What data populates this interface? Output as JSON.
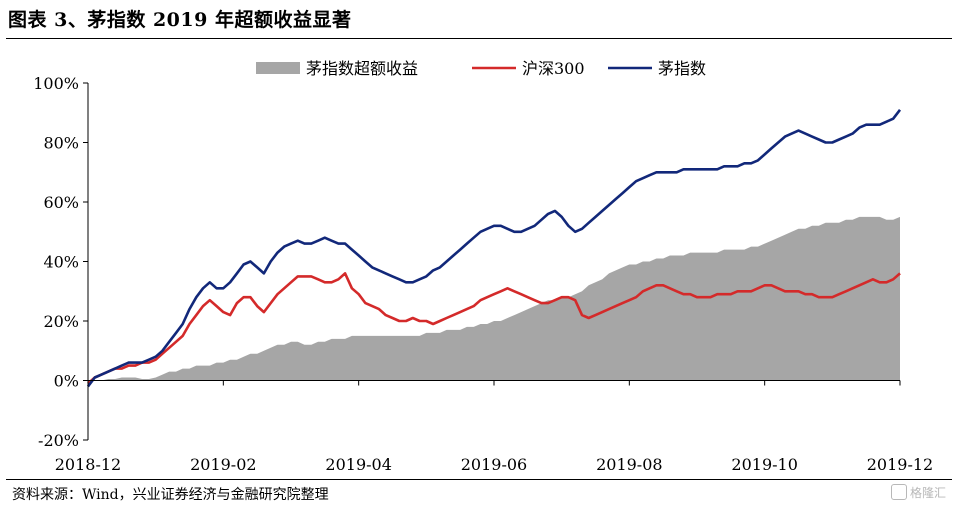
{
  "figure_title": "图表 3、茅指数 2019 年超额收益显著",
  "source": "资料来源：Wind，兴业证券经济与金融研究院整理",
  "watermark": "格隆汇",
  "colors": {
    "excess": "#a6a6a6",
    "hs300": "#d42a2a",
    "mao": "#12287a"
  },
  "chart_data": {
    "type": "line",
    "x_ticks": [
      "2018-12",
      "2019-02",
      "2019-04",
      "2019-06",
      "2019-08",
      "2019-10",
      "2019-12"
    ],
    "y_ticks": [
      "-20%",
      "0%",
      "20%",
      "40%",
      "60%",
      "80%",
      "100%"
    ],
    "ylim": [
      -20,
      100
    ],
    "legend_position": "top-center",
    "grid": false,
    "x": [
      0,
      1,
      2,
      3,
      4,
      5,
      6,
      7,
      8,
      9,
      10,
      11,
      12,
      13,
      14,
      15,
      16,
      17,
      18,
      19,
      20,
      21,
      22,
      23,
      24,
      25,
      26,
      27,
      28,
      29,
      30,
      31,
      32,
      33,
      34,
      35,
      36,
      37,
      38,
      39,
      40,
      41,
      42,
      43,
      44,
      45,
      46,
      47,
      48,
      49,
      50,
      51,
      52,
      53,
      54,
      55,
      56,
      57,
      58,
      59,
      60,
      61,
      62,
      63,
      64,
      65,
      66,
      67,
      68,
      69,
      70,
      71,
      72,
      73,
      74,
      75,
      76,
      77,
      78,
      79,
      80,
      81,
      82,
      83,
      84,
      85,
      86,
      87,
      88,
      89,
      90,
      91,
      92,
      93,
      94,
      95,
      96,
      97,
      98,
      99,
      100,
      101,
      102,
      103,
      104,
      105,
      106,
      107,
      108,
      109,
      110,
      111,
      112,
      113,
      114,
      115,
      116,
      117,
      118,
      119,
      120
    ],
    "series": [
      {
        "name": "茅指数超额收益",
        "kind": "area",
        "values": [
          -1,
          0,
          0,
          0.5,
          0.5,
          1,
          1,
          1,
          0.5,
          0.5,
          1,
          2,
          3,
          3,
          4,
          4,
          5,
          5,
          5,
          6,
          6,
          7,
          7,
          8,
          9,
          9,
          10,
          11,
          12,
          12,
          13,
          13,
          12,
          12,
          13,
          13,
          14,
          14,
          14,
          15,
          15,
          15,
          15,
          15,
          15,
          15,
          15,
          15,
          15,
          15,
          16,
          16,
          16,
          17,
          17,
          17,
          18,
          18,
          19,
          19,
          20,
          20,
          21,
          22,
          23,
          24,
          25,
          26,
          27,
          27,
          28,
          28,
          29,
          30,
          32,
          33,
          34,
          36,
          37,
          38,
          39,
          39,
          40,
          40,
          41,
          41,
          42,
          42,
          42,
          43,
          43,
          43,
          43,
          43,
          44,
          44,
          44,
          44,
          45,
          45,
          46,
          47,
          48,
          49,
          50,
          51,
          51,
          52,
          52,
          53,
          53,
          53,
          54,
          54,
          55,
          55,
          55,
          55,
          54,
          54,
          55
        ]
      },
      {
        "name": "沪深300",
        "kind": "line",
        "values": [
          -1,
          1,
          2,
          3,
          4,
          4,
          5,
          5,
          6,
          6,
          7,
          9,
          11,
          13,
          15,
          19,
          22,
          25,
          27,
          25,
          23,
          22,
          26,
          28,
          28,
          25,
          23,
          26,
          29,
          31,
          33,
          35,
          35,
          35,
          34,
          33,
          33,
          34,
          36,
          31,
          29,
          26,
          25,
          24,
          22,
          21,
          20,
          20,
          21,
          20,
          20,
          19,
          20,
          21,
          22,
          23,
          24,
          25,
          27,
          28,
          29,
          30,
          31,
          30,
          29,
          28,
          27,
          26,
          26,
          27,
          28,
          28,
          27,
          22,
          21,
          22,
          23,
          24,
          25,
          26,
          27,
          28,
          30,
          31,
          32,
          32,
          31,
          30,
          29,
          29,
          28,
          28,
          28,
          29,
          29,
          29,
          30,
          30,
          30,
          31,
          32,
          32,
          31,
          30,
          30,
          30,
          29,
          29,
          28,
          28,
          28,
          29,
          30,
          31,
          32,
          33,
          34,
          33,
          33,
          34,
          36
        ]
      },
      {
        "name": "茅指数",
        "kind": "line",
        "values": [
          -2,
          1,
          2,
          3,
          4,
          5,
          6,
          6,
          6,
          7,
          8,
          10,
          13,
          16,
          19,
          24,
          28,
          31,
          33,
          31,
          31,
          33,
          36,
          39,
          40,
          38,
          36,
          40,
          43,
          45,
          46,
          47,
          46,
          46,
          47,
          48,
          47,
          46,
          46,
          44,
          42,
          40,
          38,
          37,
          36,
          35,
          34,
          33,
          33,
          34,
          35,
          37,
          38,
          40,
          42,
          44,
          46,
          48,
          50,
          51,
          52,
          52,
          51,
          50,
          50,
          51,
          52,
          54,
          56,
          57,
          55,
          52,
          50,
          51,
          53,
          55,
          57,
          59,
          61,
          63,
          65,
          67,
          68,
          69,
          70,
          70,
          70,
          70,
          71,
          71,
          71,
          71,
          71,
          71,
          72,
          72,
          72,
          73,
          73,
          74,
          76,
          78,
          80,
          82,
          83,
          84,
          83,
          82,
          81,
          80,
          80,
          81,
          82,
          83,
          85,
          86,
          86,
          86,
          87,
          88,
          91
        ]
      }
    ]
  }
}
